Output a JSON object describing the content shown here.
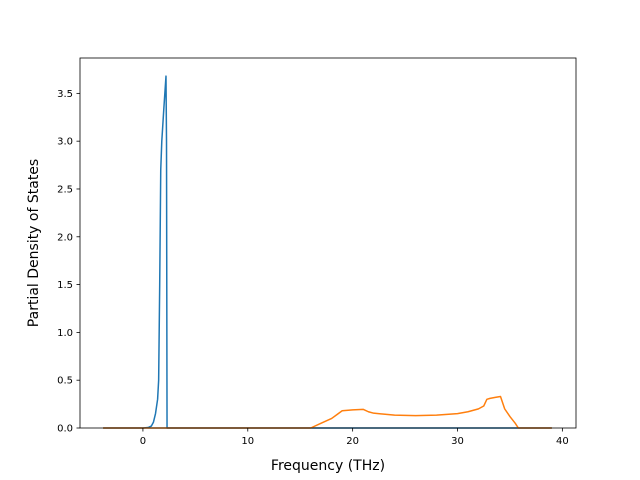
{
  "chart_data": {
    "type": "line",
    "title": "",
    "xlabel": "Frequency (THz)",
    "ylabel": "Partial Density of States",
    "xlim": [
      -6.0,
      41.3
    ],
    "ylim": [
      0.0,
      3.87
    ],
    "xticks": [
      0,
      10,
      20,
      30,
      40
    ],
    "yticks": [
      0.0,
      0.5,
      1.0,
      1.5,
      2.0,
      2.5,
      3.0,
      3.5
    ],
    "xtick_labels": [
      "0",
      "10",
      "20",
      "30",
      "40"
    ],
    "ytick_labels": [
      "0.0",
      "0.5",
      "1.0",
      "1.5",
      "2.0",
      "2.5",
      "3.0",
      "3.5"
    ],
    "grid": false,
    "legend": false,
    "series": [
      {
        "color": "#1f77b4",
        "x": [
          -3.8,
          0.0,
          0.5,
          0.8,
          1.0,
          1.2,
          1.4,
          1.5,
          1.6,
          1.7,
          1.8,
          2.0,
          2.2,
          2.25,
          2.3,
          2.35,
          39.0
        ],
        "y": [
          0.0,
          0.0,
          0.005,
          0.02,
          0.06,
          0.15,
          0.3,
          0.5,
          1.5,
          2.7,
          3.0,
          3.35,
          3.68,
          3.0,
          0.0,
          0.0,
          0.0
        ]
      },
      {
        "color": "#ff7f0e",
        "x": [
          -3.8,
          16.0,
          17.0,
          18.0,
          18.5,
          19.0,
          20.0,
          21.0,
          21.5,
          22.0,
          24.0,
          26.0,
          28.0,
          30.0,
          31.0,
          32.0,
          32.5,
          32.8,
          33.1,
          33.6,
          34.1,
          34.5,
          35.0,
          35.5,
          35.8,
          39.0
        ],
        "y": [
          0.0,
          0.0,
          0.05,
          0.1,
          0.14,
          0.18,
          0.19,
          0.195,
          0.17,
          0.155,
          0.135,
          0.13,
          0.135,
          0.15,
          0.17,
          0.2,
          0.23,
          0.3,
          0.31,
          0.32,
          0.33,
          0.2,
          0.12,
          0.05,
          0.0,
          0.0
        ]
      }
    ]
  }
}
